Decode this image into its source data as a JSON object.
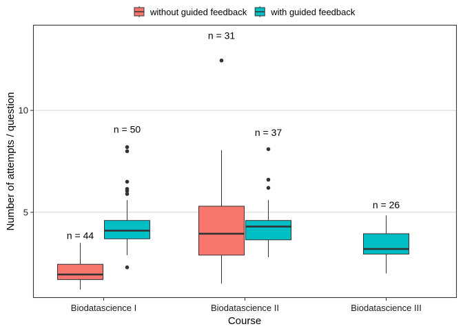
{
  "chart_data": {
    "type": "boxplot",
    "xlabel": "Course",
    "ylabel": "Number of attempts / question",
    "ylim": [
      0.8,
      14.2
    ],
    "y_ticks": [
      5,
      10
    ],
    "grid": "horizontal major",
    "legend_position": "top",
    "categories": [
      "Biodatascience I",
      "Biodatascience II",
      "Biodatascience III"
    ],
    "series": [
      {
        "name": "without guided feedback",
        "color": "#F8766D",
        "boxes": [
          {
            "category": "Biodatascience I",
            "min": 1.2,
            "q1": 1.7,
            "median": 1.95,
            "q3": 2.45,
            "max": 3.5,
            "outliers": []
          },
          {
            "category": "Biodatascience II",
            "min": 1.5,
            "q1": 2.9,
            "median": 3.95,
            "q3": 5.3,
            "max": 8.05,
            "outliers": [
              12.45
            ]
          }
        ]
      },
      {
        "name": "with guided feedback",
        "color": "#00BFC4",
        "boxes": [
          {
            "category": "Biodatascience I",
            "min": 2.9,
            "q1": 3.7,
            "median": 4.1,
            "q3": 4.6,
            "max": 5.6,
            "outliers": [
              2.3,
              5.9,
              6.05,
              6.15,
              6.5,
              8.0,
              8.2
            ]
          },
          {
            "category": "Biodatascience II",
            "min": 2.8,
            "q1": 3.65,
            "median": 4.3,
            "q3": 4.6,
            "max": 5.6,
            "outliers": [
              6.2,
              6.6,
              8.1
            ]
          },
          {
            "category": "Biodatascience III",
            "min": 2.0,
            "q1": 2.95,
            "median": 3.2,
            "q3": 3.95,
            "max": 4.85,
            "outliers": []
          }
        ]
      }
    ],
    "annotations": [
      {
        "text": "n = 44",
        "category": "Biodatascience I",
        "y": 3.7
      },
      {
        "text": "n = 50",
        "category": "Biodatascience I",
        "y": 8.9
      },
      {
        "text": "n = 31",
        "category": "Biodatascience II",
        "y": 13.5
      },
      {
        "text": "n = 37",
        "category": "Biodatascience II",
        "y": 8.75
      },
      {
        "text": "n = 26",
        "category": "Biodatascience III",
        "y": 5.2
      }
    ]
  }
}
